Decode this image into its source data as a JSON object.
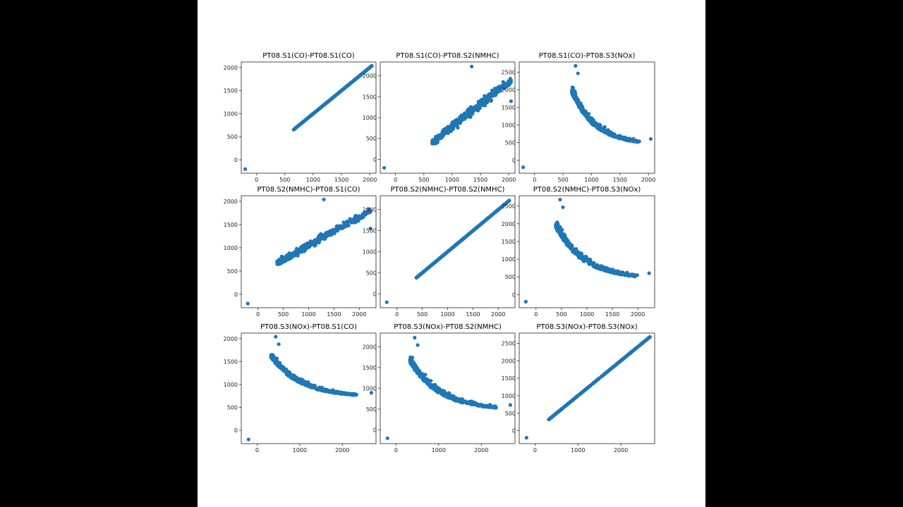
{
  "background_color": "#000000",
  "figure_background": "#ffffff",
  "marker_color": "#1f77b4",
  "chart_data": [
    {
      "type": "scatter",
      "title": "PT08.S1(CO)-PT08.S1(CO)",
      "pattern": "identity",
      "xlim": [
        -270,
        2110
      ],
      "ylim": [
        -290,
        2120
      ],
      "xticks": [
        0,
        500,
        1000,
        1500,
        2000
      ],
      "yticks": [
        0,
        500,
        1000,
        1500,
        2000
      ],
      "outlier": [
        -200,
        -200
      ],
      "x_range": [
        650,
        2040
      ],
      "y_range": [
        650,
        2040
      ]
    },
    {
      "type": "scatter",
      "title": "PT08.S1(CO)-PT08.S2(NMHC)",
      "pattern": "positive",
      "xlim": [
        -270,
        2110
      ],
      "ylim": [
        -330,
        2330
      ],
      "xticks": [
        0,
        500,
        1000,
        1500,
        2000
      ],
      "yticks": [
        0,
        500,
        1000,
        1500,
        2000
      ],
      "outlier": [
        -200,
        -200
      ],
      "x_range": [
        650,
        2040
      ],
      "y_range": [
        380,
        2220
      ]
    },
    {
      "type": "scatter",
      "title": "PT08.S1(CO)-PT08.S3(NOx)",
      "pattern": "negative",
      "xlim": [
        -270,
        2110
      ],
      "ylim": [
        -370,
        2790
      ],
      "xticks": [
        0,
        500,
        1000,
        1500,
        2000
      ],
      "yticks": [
        0,
        500,
        1000,
        1500,
        2000,
        2500
      ],
      "outlier": [
        -200,
        -200
      ],
      "x_range": [
        650,
        2040
      ],
      "y_range": [
        320,
        2680
      ]
    },
    {
      "type": "scatter",
      "title": "PT08.S2(NMHC)-PT08.S1(CO)",
      "pattern": "positive",
      "xlim": [
        -330,
        2330
      ],
      "ylim": [
        -290,
        2120
      ],
      "xticks": [
        0,
        500,
        1000,
        1500,
        2000
      ],
      "yticks": [
        0,
        500,
        1000,
        1500,
        2000
      ],
      "outlier": [
        -200,
        -200
      ],
      "x_range": [
        380,
        2220
      ],
      "y_range": [
        650,
        2040
      ]
    },
    {
      "type": "scatter",
      "title": "PT08.S2(NMHC)-PT08.S2(NMHC)",
      "pattern": "identity",
      "xlim": [
        -330,
        2330
      ],
      "ylim": [
        -330,
        2330
      ],
      "xticks": [
        0,
        500,
        1000,
        1500,
        2000
      ],
      "yticks": [
        0,
        500,
        1000,
        1500,
        2000
      ],
      "outlier": [
        -200,
        -200
      ],
      "x_range": [
        380,
        2220
      ],
      "y_range": [
        380,
        2220
      ]
    },
    {
      "type": "scatter",
      "title": "PT08.S2(NMHC)-PT08.S3(NOx)",
      "pattern": "negative",
      "xlim": [
        -330,
        2330
      ],
      "ylim": [
        -370,
        2790
      ],
      "xticks": [
        0,
        500,
        1000,
        1500,
        2000
      ],
      "yticks": [
        0,
        500,
        1000,
        1500,
        2000,
        2500
      ],
      "outlier": [
        -200,
        -200
      ],
      "x_range": [
        380,
        2220
      ],
      "y_range": [
        320,
        2680
      ]
    },
    {
      "type": "scatter",
      "title": "PT08.S3(NOx)-PT08.S1(CO)",
      "pattern": "negative",
      "xlim": [
        -370,
        2790
      ],
      "ylim": [
        -290,
        2120
      ],
      "xticks": [
        0,
        1000,
        2000
      ],
      "yticks": [
        0,
        500,
        1000,
        1500,
        2000
      ],
      "outlier": [
        -200,
        -200
      ],
      "x_range": [
        320,
        2680
      ],
      "y_range": [
        650,
        2040
      ]
    },
    {
      "type": "scatter",
      "title": "PT08.S3(NOx)-PT08.S2(NMHC)",
      "pattern": "negative",
      "xlim": [
        -370,
        2790
      ],
      "ylim": [
        -330,
        2330
      ],
      "xticks": [
        0,
        1000,
        2000
      ],
      "yticks": [
        0,
        500,
        1000,
        1500,
        2000
      ],
      "outlier": [
        -200,
        -200
      ],
      "x_range": [
        320,
        2680
      ],
      "y_range": [
        380,
        2220
      ]
    },
    {
      "type": "scatter",
      "title": "PT08.S3(NOx)-PT08.S3(NOx)",
      "pattern": "identity",
      "xlim": [
        -370,
        2790
      ],
      "ylim": [
        -370,
        2790
      ],
      "xticks": [
        0,
        1000,
        2000
      ],
      "yticks": [
        0,
        500,
        1000,
        1500,
        2000,
        2500
      ],
      "outlier": [
        -200,
        -200
      ],
      "x_range": [
        320,
        2680
      ],
      "y_range": [
        320,
        2680
      ]
    }
  ]
}
